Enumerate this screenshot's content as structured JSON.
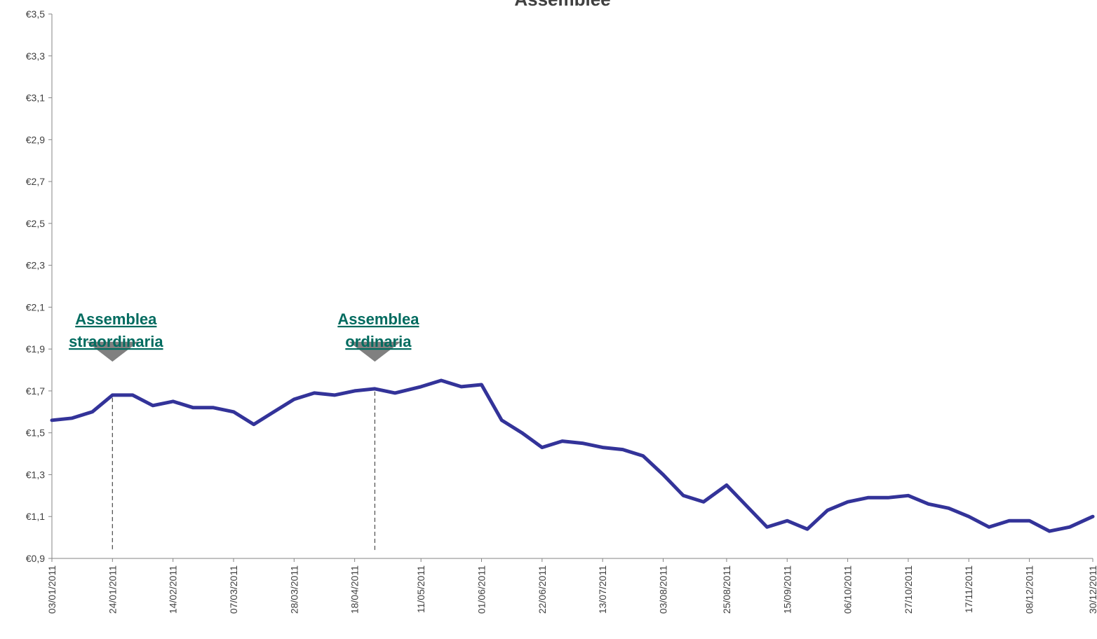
{
  "chart_data": {
    "type": "line",
    "title": "Assemblee",
    "xlabel": "",
    "ylabel": "",
    "ylim": [
      0.9,
      3.5
    ],
    "ytick_labels": [
      "€0,9",
      "€1,1",
      "€1,3",
      "€1,5",
      "€1,7",
      "€1,9",
      "€2,1",
      "€2,3",
      "€2,5",
      "€2,7",
      "€2,9",
      "€3,1",
      "€3,3",
      "€3,5"
    ],
    "ytick_values": [
      0.9,
      1.1,
      1.3,
      1.5,
      1.7,
      1.9,
      2.1,
      2.3,
      2.5,
      2.7,
      2.9,
      3.1,
      3.3,
      3.5
    ],
    "xtick_labels": [
      "03/01/2011",
      "24/01/2011",
      "14/02/2011",
      "07/03/2011",
      "28/03/2011",
      "18/04/2011",
      "11/05/2011",
      "01/06/2011",
      "22/06/2011",
      "13/07/2011",
      "03/08/2011",
      "25/08/2011",
      "15/09/2011",
      "06/10/2011",
      "27/10/2011",
      "17/11/2011",
      "08/12/2011",
      "30/12/2011"
    ],
    "grid": false,
    "series": [
      {
        "color": "#333399",
        "x": [
          "03/01/2011",
          "10/01/2011",
          "17/01/2011",
          "24/01/2011",
          "31/01/2011",
          "07/02/2011",
          "14/02/2011",
          "21/02/2011",
          "28/02/2011",
          "07/03/2011",
          "14/03/2011",
          "21/03/2011",
          "28/03/2011",
          "04/04/2011",
          "11/04/2011",
          "18/04/2011",
          "25/04/2011",
          "02/05/2011",
          "11/05/2011",
          "18/05/2011",
          "25/05/2011",
          "01/06/2011",
          "08/06/2011",
          "15/06/2011",
          "22/06/2011",
          "29/06/2011",
          "06/07/2011",
          "13/07/2011",
          "20/07/2011",
          "27/07/2011",
          "03/08/2011",
          "10/08/2011",
          "17/08/2011",
          "25/08/2011",
          "01/09/2011",
          "08/09/2011",
          "15/09/2011",
          "22/09/2011",
          "29/09/2011",
          "06/10/2011",
          "13/10/2011",
          "20/10/2011",
          "27/10/2011",
          "03/11/2011",
          "10/11/2011",
          "17/11/2011",
          "24/11/2011",
          "01/12/2011",
          "08/12/2011",
          "15/12/2011",
          "22/12/2011",
          "30/12/2011"
        ],
        "values": [
          1.56,
          1.57,
          1.6,
          1.68,
          1.68,
          1.63,
          1.65,
          1.62,
          1.62,
          1.6,
          1.54,
          1.6,
          1.66,
          1.69,
          1.68,
          1.7,
          1.71,
          1.69,
          1.72,
          1.75,
          1.72,
          1.73,
          1.56,
          1.5,
          1.43,
          1.46,
          1.45,
          1.43,
          1.42,
          1.39,
          1.3,
          1.2,
          1.17,
          1.25,
          1.15,
          1.05,
          1.08,
          1.04,
          1.13,
          1.17,
          1.19,
          1.19,
          1.2,
          1.16,
          1.14,
          1.1,
          1.05,
          1.08,
          1.08,
          1.03,
          1.05,
          1.1
        ]
      }
    ],
    "annotations": [
      {
        "label_lines": [
          "Assemblea",
          "straordinaria"
        ],
        "x": "24/01/2011"
      },
      {
        "label_lines": [
          "Assemblea",
          "ordinaria"
        ],
        "x": "25/04/2011"
      }
    ]
  }
}
